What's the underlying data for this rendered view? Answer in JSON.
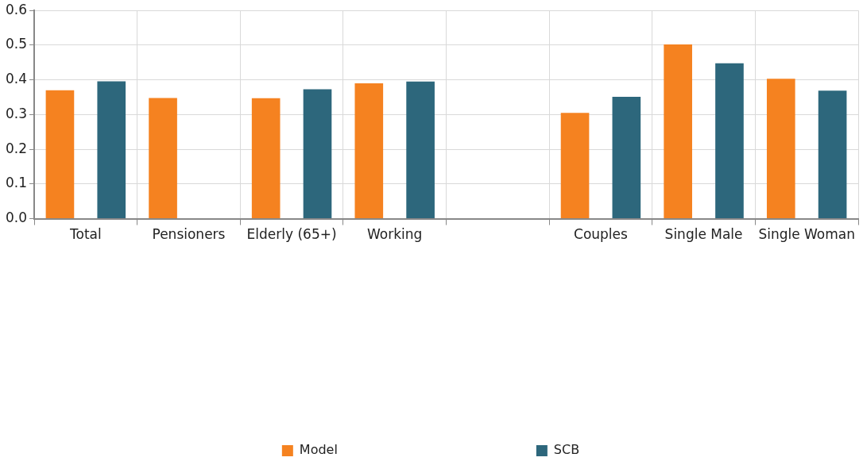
{
  "chart_data": {
    "type": "bar",
    "categories": [
      "Total",
      "Pensioners",
      "Elderly (65+)",
      "Working",
      null,
      "Couples",
      "Single Male",
      "Single Woman"
    ],
    "series": [
      {
        "name": "Model",
        "color": "#f58220",
        "values": [
          0.37,
          0.348,
          0.347,
          0.39,
          null,
          0.305,
          0.502,
          0.403
        ]
      },
      {
        "name": "SCB",
        "color": "#2d677c",
        "values": [
          0.396,
          null,
          0.373,
          0.395,
          null,
          0.351,
          0.448,
          0.369
        ]
      }
    ],
    "ylim": [
      0,
      0.6
    ],
    "yticks": [
      {
        "value": 0,
        "label": "0.0"
      },
      0.1,
      0.2,
      0.3,
      0.4,
      0.5,
      0.6
    ],
    "grid": true,
    "legend": "bottom"
  }
}
